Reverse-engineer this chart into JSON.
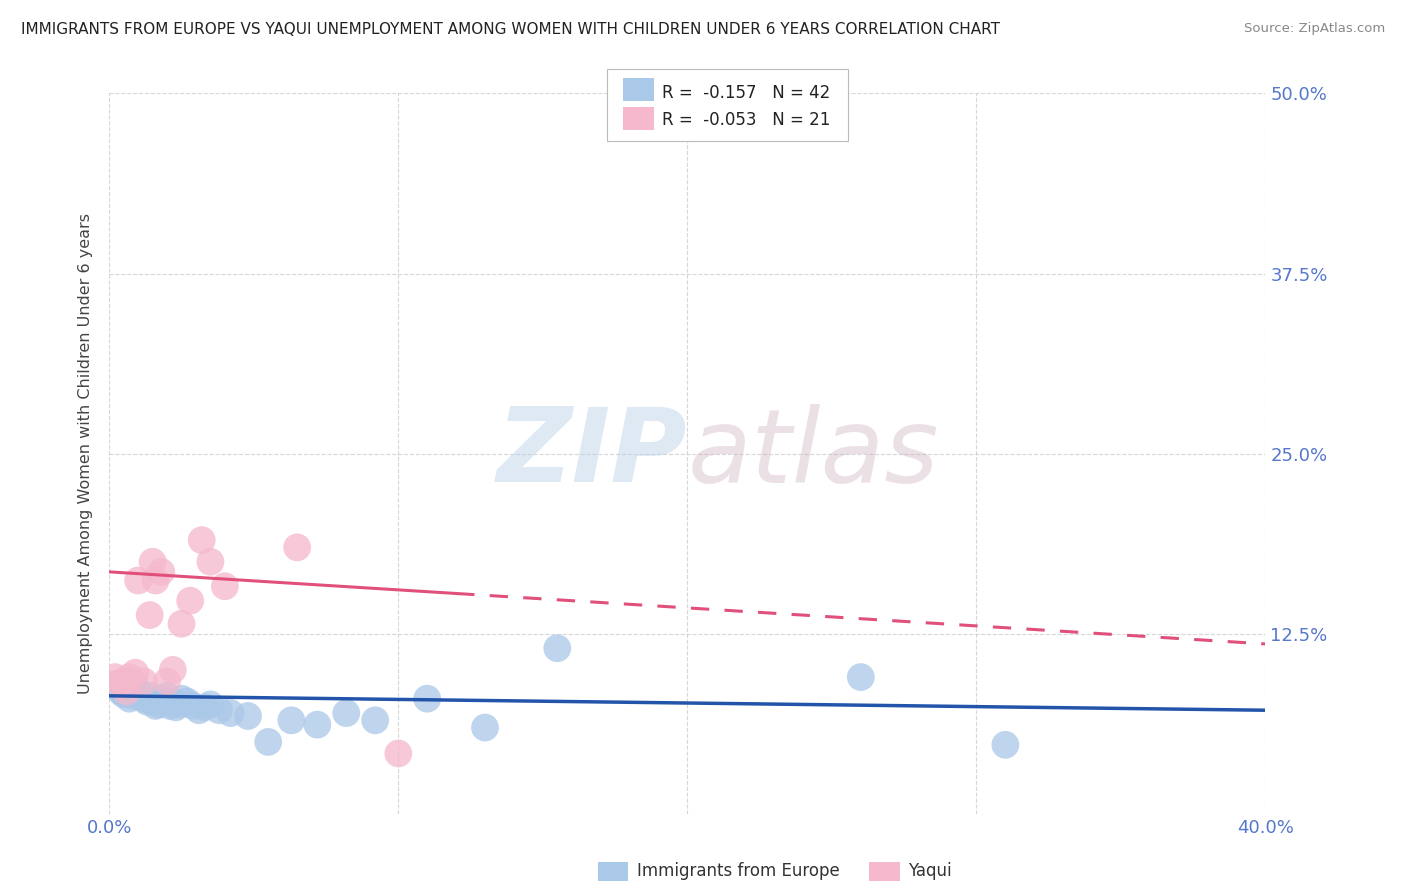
{
  "title": "IMMIGRANTS FROM EUROPE VS YAQUI UNEMPLOYMENT AMONG WOMEN WITH CHILDREN UNDER 6 YEARS CORRELATION CHART",
  "source": "Source: ZipAtlas.com",
  "ylabel": "Unemployment Among Women with Children Under 6 years",
  "xlim": [
    0.0,
    0.4
  ],
  "ylim": [
    0.0,
    0.5
  ],
  "xticks": [
    0.0,
    0.1,
    0.2,
    0.3,
    0.4
  ],
  "xtick_labels": [
    "0.0%",
    "",
    "",
    "",
    "40.0%"
  ],
  "yticks": [
    0.0,
    0.125,
    0.25,
    0.375,
    0.5
  ],
  "ytick_labels_right": [
    "",
    "12.5%",
    "25.0%",
    "37.5%",
    "50.0%"
  ],
  "blue_R": "-0.157",
  "blue_N": "42",
  "pink_R": "-0.053",
  "pink_N": "21",
  "blue_color": "#aac8e8",
  "pink_color": "#f5b8cc",
  "blue_line_color": "#2255aa",
  "pink_line_color": "#e0507a",
  "watermark_zip": "ZIP",
  "watermark_atlas": "atlas",
  "background_color": "#ffffff",
  "grid_color": "#cccccc",
  "title_color": "#222222",
  "axis_label_color": "#444444",
  "tick_color": "#5577cc",
  "legend_label1": "Immigrants from Europe",
  "legend_label2": "Yaqui",
  "blue_scatter_x": [
    0.002,
    0.003,
    0.004,
    0.005,
    0.006,
    0.007,
    0.008,
    0.009,
    0.01,
    0.011,
    0.012,
    0.013,
    0.014,
    0.015,
    0.016,
    0.017,
    0.018,
    0.019,
    0.02,
    0.021,
    0.022,
    0.023,
    0.024,
    0.025,
    0.027,
    0.029,
    0.031,
    0.033,
    0.035,
    0.038,
    0.042,
    0.048,
    0.055,
    0.063,
    0.072,
    0.082,
    0.092,
    0.11,
    0.13,
    0.155,
    0.26,
    0.31
  ],
  "blue_scatter_y": [
    0.09,
    0.088,
    0.085,
    0.083,
    0.092,
    0.08,
    0.082,
    0.088,
    0.085,
    0.082,
    0.08,
    0.078,
    0.082,
    0.078,
    0.075,
    0.076,
    0.08,
    0.078,
    0.082,
    0.075,
    0.078,
    0.074,
    0.076,
    0.08,
    0.078,
    0.075,
    0.072,
    0.074,
    0.076,
    0.072,
    0.07,
    0.068,
    0.05,
    0.065,
    0.062,
    0.07,
    0.065,
    0.08,
    0.06,
    0.115,
    0.095,
    0.048
  ],
  "pink_scatter_x": [
    0.002,
    0.003,
    0.005,
    0.006,
    0.007,
    0.009,
    0.01,
    0.012,
    0.014,
    0.015,
    0.016,
    0.018,
    0.02,
    0.022,
    0.025,
    0.028,
    0.032,
    0.035,
    0.04,
    0.065,
    0.1
  ],
  "pink_scatter_y": [
    0.095,
    0.09,
    0.092,
    0.085,
    0.095,
    0.098,
    0.162,
    0.092,
    0.138,
    0.175,
    0.162,
    0.168,
    0.092,
    0.1,
    0.132,
    0.148,
    0.19,
    0.175,
    0.158,
    0.185,
    0.042
  ],
  "blue_line_x_start": 0.0,
  "blue_line_x_end": 0.4,
  "blue_line_y_start": 0.082,
  "blue_line_y_end": 0.072,
  "pink_line_solid_x_start": 0.0,
  "pink_line_solid_x_end": 0.12,
  "pink_line_dashed_x_start": 0.12,
  "pink_line_dashed_x_end": 0.4,
  "pink_line_y_start": 0.168,
  "pink_line_y_end": 0.118
}
